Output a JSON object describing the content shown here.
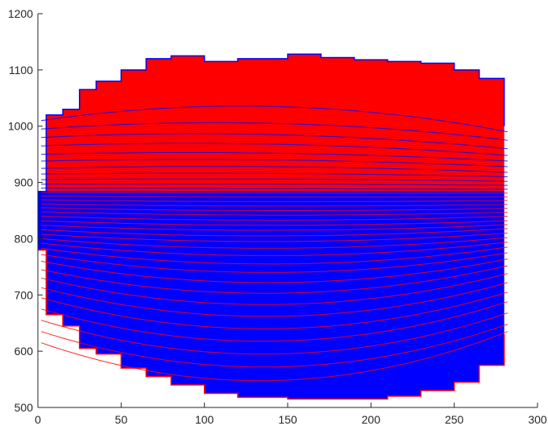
{
  "chart_data": {
    "type": "area",
    "title": "",
    "xlabel": "",
    "ylabel": "",
    "xlim": [
      0,
      300
    ],
    "ylim": [
      500,
      1200
    ],
    "xticks": [
      0,
      50,
      100,
      150,
      200,
      250,
      300
    ],
    "yticks": [
      500,
      600,
      700,
      800,
      900,
      1000,
      1100,
      1200
    ],
    "grid": false,
    "legend": "none",
    "colors": {
      "upper_fill": "#ff0000",
      "lower_fill": "#0000ff",
      "upper_lines": "#0000ff",
      "lower_lines": "#ff0000",
      "axis": "#262626"
    },
    "upper_envelope": {
      "x": [
        0,
        5,
        15,
        25,
        35,
        50,
        65,
        80,
        100,
        120,
        150,
        170,
        190,
        210,
        230,
        250,
        265,
        280
      ],
      "y": [
        780,
        1020,
        1030,
        1065,
        1080,
        1100,
        1120,
        1125,
        1115,
        1120,
        1128,
        1122,
        1118,
        1115,
        1112,
        1100,
        1085,
        1000
      ]
    },
    "lower_envelope": {
      "x": [
        0,
        5,
        15,
        25,
        35,
        50,
        65,
        80,
        100,
        120,
        150,
        170,
        190,
        210,
        230,
        250,
        265,
        280
      ],
      "y": [
        780,
        665,
        645,
        605,
        595,
        570,
        555,
        540,
        525,
        518,
        515,
        515,
        515,
        520,
        530,
        545,
        575,
        630
      ]
    },
    "series": [
      {
        "y_left": 1010,
        "y_center": 1035,
        "y_right": 990
      },
      {
        "y_left": 995,
        "y_center": 1005,
        "y_right": 975
      },
      {
        "y_left": 980,
        "y_center": 985,
        "y_right": 960
      },
      {
        "y_left": 965,
        "y_center": 968,
        "y_right": 948
      },
      {
        "y_left": 950,
        "y_center": 952,
        "y_right": 938
      },
      {
        "y_left": 938,
        "y_center": 940,
        "y_right": 928
      },
      {
        "y_left": 925,
        "y_center": 928,
        "y_right": 918
      },
      {
        "y_left": 915,
        "y_center": 916,
        "y_right": 910
      },
      {
        "y_left": 905,
        "y_center": 906,
        "y_right": 902
      },
      {
        "y_left": 897,
        "y_center": 897,
        "y_right": 895
      },
      {
        "y_left": 890,
        "y_center": 889,
        "y_right": 888
      },
      {
        "y_left": 883,
        "y_center": 881,
        "y_right": 881
      },
      {
        "y_left": 876,
        "y_center": 874,
        "y_right": 874
      },
      {
        "y_left": 869,
        "y_center": 866,
        "y_right": 868
      },
      {
        "y_left": 862,
        "y_center": 858,
        "y_right": 861
      },
      {
        "y_left": 855,
        "y_center": 850,
        "y_right": 854
      },
      {
        "y_left": 848,
        "y_center": 842,
        "y_right": 847
      },
      {
        "y_left": 840,
        "y_center": 833,
        "y_right": 840
      },
      {
        "y_left": 832,
        "y_center": 824,
        "y_right": 832
      },
      {
        "y_left": 824,
        "y_center": 815,
        "y_right": 825
      },
      {
        "y_left": 816,
        "y_center": 805,
        "y_right": 818
      },
      {
        "y_left": 808,
        "y_center": 795,
        "y_right": 810
      },
      {
        "y_left": 800,
        "y_center": 783,
        "y_right": 802
      },
      {
        "y_left": 792,
        "y_center": 770,
        "y_right": 794
      },
      {
        "y_left": 783,
        "y_center": 755,
        "y_right": 785
      },
      {
        "y_left": 772,
        "y_center": 740,
        "y_right": 775
      },
      {
        "y_left": 760,
        "y_center": 722,
        "y_right": 764
      },
      {
        "y_left": 745,
        "y_center": 703,
        "y_right": 752
      },
      {
        "y_left": 730,
        "y_center": 683,
        "y_right": 738
      },
      {
        "y_left": 713,
        "y_center": 662,
        "y_right": 722
      },
      {
        "y_left": 695,
        "y_center": 640,
        "y_right": 705
      },
      {
        "y_left": 675,
        "y_center": 618,
        "y_right": 688
      },
      {
        "y_left": 655,
        "y_center": 595,
        "y_right": 668
      },
      {
        "y_left": 635,
        "y_center": 572,
        "y_right": 648
      },
      {
        "y_left": 615,
        "y_center": 548,
        "y_right": 635
      }
    ]
  }
}
